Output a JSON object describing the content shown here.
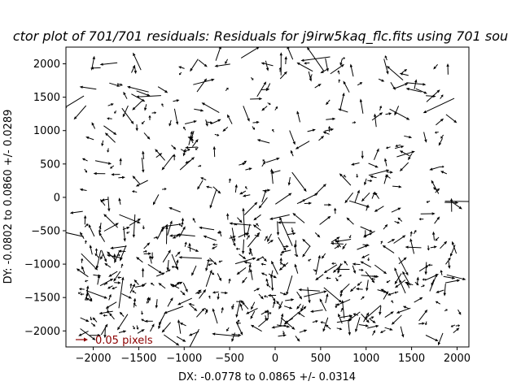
{
  "chart_data": {
    "type": "quiver",
    "title": "ctor plot of 701/701 residuals: Residuals for j9irw5kaq_flc.fits using 701 sou",
    "xlabel": "DX: -0.0778 to 0.0865 +/- 0.0314",
    "ylabel": "DY: -0.0802 to 0.0860 +/- 0.0289",
    "xlim": [
      -2300,
      2130
    ],
    "ylim": [
      -2240,
      2250
    ],
    "xticks": [
      -2000,
      -1500,
      -1000,
      -500,
      0,
      500,
      1000,
      1500,
      2000
    ],
    "yticks": [
      -2000,
      -1500,
      -1000,
      -500,
      0,
      500,
      1000,
      1500,
      2000
    ],
    "xtick_labels": [
      "−2000",
      "−1500",
      "−1000",
      "−500",
      "0",
      "500",
      "1000",
      "1500",
      "2000"
    ],
    "ytick_labels": [
      "−2000",
      "−1500",
      "−1000",
      "−500",
      "0",
      "500",
      "1000",
      "1500",
      "2000"
    ],
    "grid": false,
    "n_vectors": 701,
    "vector_color": "#000000",
    "key": {
      "label": "0.05 pixels",
      "color": "#8b0000",
      "magnitude": 0.05
    },
    "random_seed": 9135
  }
}
